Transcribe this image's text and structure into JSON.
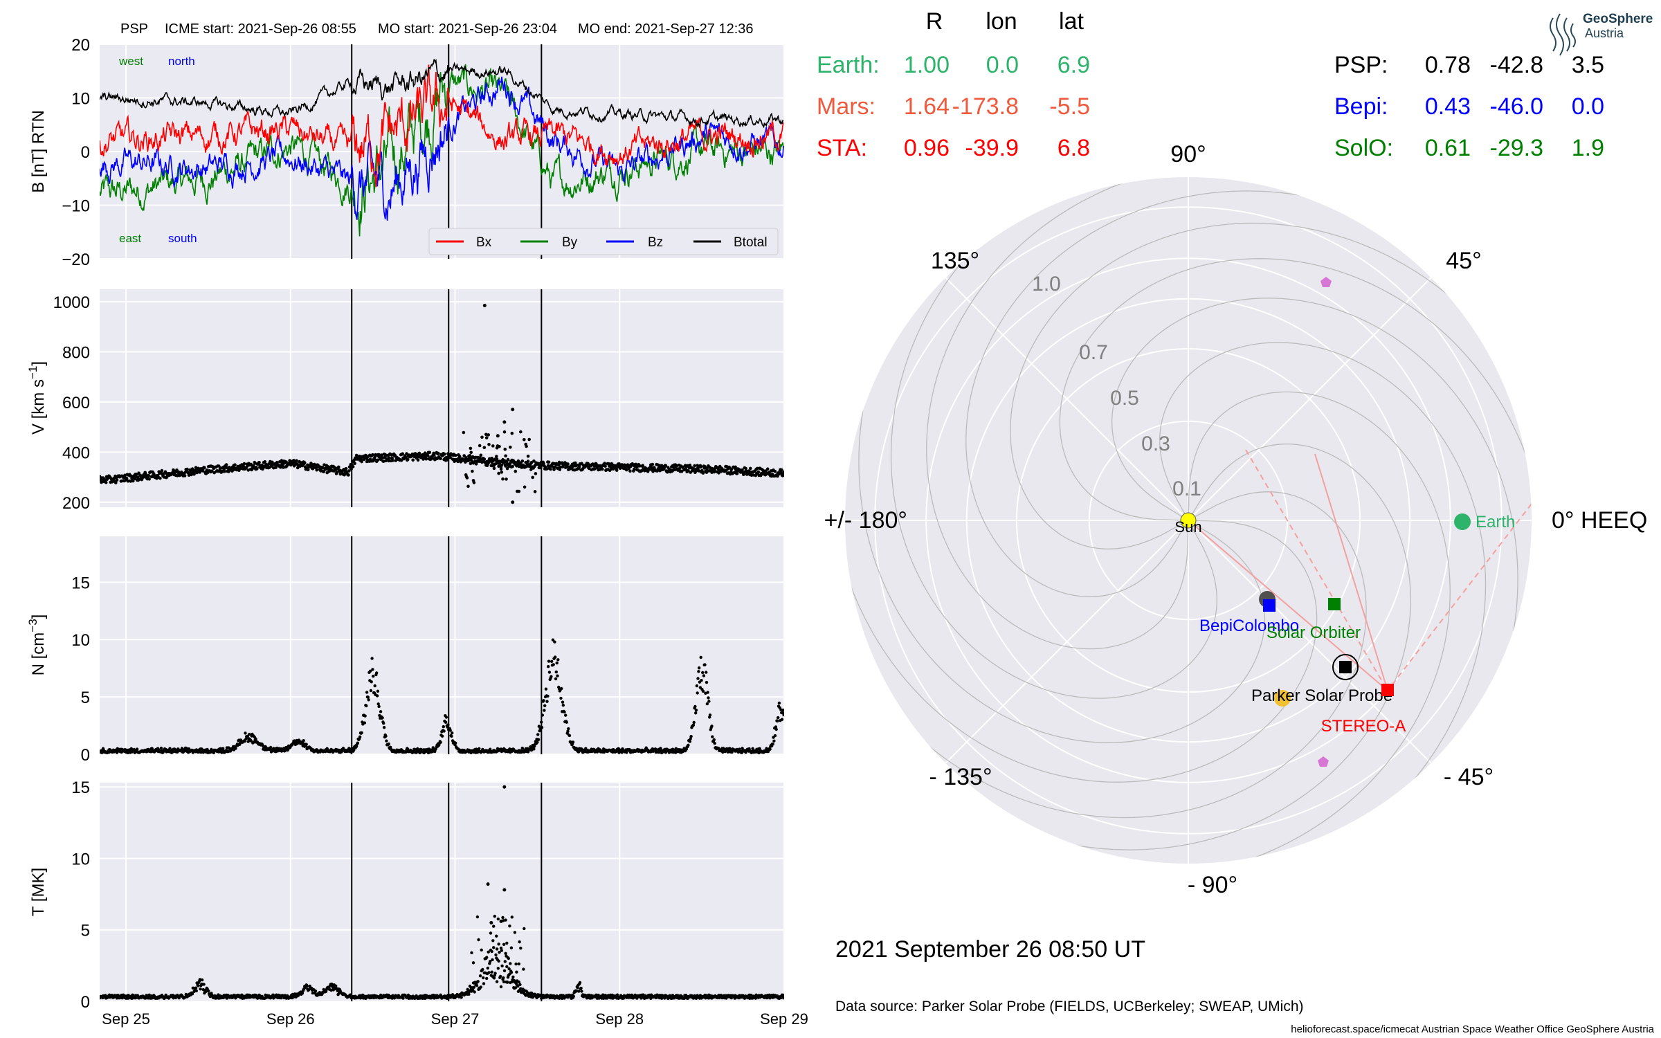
{
  "header": {
    "spacecraft": "PSP",
    "icme_start": "ICME start: 2021-Sep-26 08:55",
    "mo_start": "MO start: 2021-Sep-26 23:04",
    "mo_end": "MO end: 2021-Sep-27 12:36"
  },
  "logo": {
    "line1": "GeoSphere",
    "line2": "Austria"
  },
  "colors": {
    "earth": "#2db36a",
    "mars": "#f05a3c",
    "sta": "#ff0000",
    "bepi": "#0000ff",
    "solo": "#008000",
    "psp": "#000000",
    "bx": "#ff0000",
    "by": "#008000",
    "bz": "#0000ff",
    "btotal": "#000000",
    "panel_bg": "#eaeaf2",
    "polar_bg": "#e8e8ee",
    "venus_marker": "#d876d6"
  },
  "position_table": {
    "headers": [
      "R",
      "lon",
      "lat"
    ],
    "rows_left": [
      {
        "name": "Earth:",
        "r": "1.00",
        "lon": "0.0",
        "lat": "6.9",
        "color": "#2db36a"
      },
      {
        "name": "Mars:",
        "r": "1.64",
        "lon": "-173.8",
        "lat": "-5.5",
        "color": "#f05a3c"
      },
      {
        "name": "STA:",
        "r": "0.96",
        "lon": "-39.9",
        "lat": "6.8",
        "color": "#ff0000"
      }
    ],
    "rows_right": [
      {
        "name": "PSP:",
        "r": "0.78",
        "lon": "-42.8",
        "lat": "3.5",
        "color": "#000000"
      },
      {
        "name": "Bepi:",
        "r": "0.43",
        "lon": "-46.0",
        "lat": "0.0",
        "color": "#0000ff"
      },
      {
        "name": "SolO:",
        "r": "0.61",
        "lon": "-29.3",
        "lat": "1.9",
        "color": "#008000"
      }
    ]
  },
  "polar": {
    "angle_labels": [
      "90°",
      "45°",
      "0° HEEQ",
      "- 45°",
      "- 90°",
      "- 135°",
      "+/- 180°",
      "135°"
    ],
    "r_ticks": [
      "1.0",
      "0.7",
      "0.5",
      "0.3",
      "0.1"
    ],
    "body_labels": {
      "sun": "Sun",
      "earth": "Earth",
      "bepi": "BepiColombo",
      "solo": "Solar Orbiter",
      "psp": "Parker Solar Probe",
      "sta": "STEREO-A"
    },
    "date": "2021 September 26  08:50 UT"
  },
  "footer": {
    "data_source": "Data source: Parker Solar Probe (FIELDS, UCBerkeley; SWEAP, UMich)",
    "credit": "helioforecast.space/icmecat   Austrian Space Weather Office   GeoSphere Austria"
  },
  "chart_data": [
    {
      "type": "line",
      "title": "",
      "ylabel": "B [nT] RTN",
      "ylim": [
        -20,
        20
      ],
      "yticks": [
        "20",
        "10",
        "0",
        "−10",
        "−20"
      ],
      "xticks": [
        "Sep 25",
        "Sep 26",
        "Sep 27",
        "Sep 28",
        "Sep 29"
      ],
      "annotations": [
        "west",
        "north",
        "east",
        "south"
      ],
      "event_lines": [
        "2021-09-26 08:55",
        "2021-09-26 23:04",
        "2021-09-27 12:36"
      ],
      "legend": {
        "placement": "lower-right",
        "entries": [
          "Bx",
          "By",
          "Bz",
          "Btotal"
        ]
      },
      "series": [
        {
          "name": "Bx",
          "x": [
            "Sep 24.9",
            "Sep 25.5",
            "Sep 26.0",
            "Sep 26.37",
            "Sep 26.6",
            "Sep 26.96",
            "Sep 27.3",
            "Sep 27.6",
            "Sep 28.0",
            "Sep 28.5",
            "Sep 29.0"
          ],
          "values": [
            2,
            3,
            4,
            0,
            3,
            9,
            2,
            3,
            0,
            3,
            3
          ]
        },
        {
          "name": "By",
          "x": [
            "Sep 24.9",
            "Sep 25.5",
            "Sep 26.0",
            "Sep 26.37",
            "Sep 26.6",
            "Sep 26.96",
            "Sep 27.3",
            "Sep 27.6",
            "Sep 28.0",
            "Sep 28.5",
            "Sep 29.0"
          ],
          "values": [
            -8,
            -5,
            1,
            -6,
            -3,
            13,
            10,
            -6,
            -3,
            0,
            0
          ]
        },
        {
          "name": "Bz",
          "x": [
            "Sep 24.9",
            "Sep 25.5",
            "Sep 26.0",
            "Sep 26.37",
            "Sep 26.6",
            "Sep 26.96",
            "Sep 27.3",
            "Sep 27.6",
            "Sep 28.0",
            "Sep 28.5",
            "Sep 29.0"
          ],
          "values": [
            -2,
            -3,
            -1,
            -6,
            -7,
            5,
            13,
            2,
            -4,
            3,
            1
          ]
        },
        {
          "name": "Btotal",
          "x": [
            "Sep 24.9",
            "Sep 25.5",
            "Sep 26.0",
            "Sep 26.37",
            "Sep 26.6",
            "Sep 26.96",
            "Sep 27.3",
            "Sep 27.6",
            "Sep 28.0",
            "Sep 28.5",
            "Sep 29.0"
          ],
          "values": [
            10,
            9,
            7,
            13,
            12,
            15,
            15,
            8,
            7,
            6,
            6
          ]
        }
      ]
    },
    {
      "type": "scatter",
      "ylabel": "V [km s",
      "ylabel_sup": "−1",
      "ylabel_end": "]",
      "ylim": [
        180,
        1050
      ],
      "yticks": [
        "1000",
        "800",
        "600",
        "400",
        "200"
      ],
      "xticks": [
        "Sep 25",
        "Sep 26",
        "Sep 27",
        "Sep 28",
        "Sep 29"
      ],
      "series": [
        {
          "name": "V",
          "x": [
            "Sep 24.9",
            "Sep 25.5",
            "Sep 26.0",
            "Sep 26.35",
            "Sep 26.4",
            "Sep 26.9",
            "Sep 27.2",
            "Sep 27.6",
            "Sep 28.0",
            "Sep 28.6",
            "Sep 29.0"
          ],
          "values": [
            290,
            330,
            355,
            320,
            375,
            385,
            360,
            345,
            340,
            330,
            315
          ]
        }
      ]
    },
    {
      "type": "scatter",
      "ylabel": "N [cm",
      "ylabel_sup": "−3",
      "ylabel_end": "]",
      "ylim": [
        0,
        19
      ],
      "yticks": [
        "15",
        "10",
        "5",
        "0"
      ],
      "xticks": [
        "Sep 25",
        "Sep 26",
        "Sep 27",
        "Sep 28",
        "Sep 29"
      ],
      "series": [
        {
          "name": "N",
          "x": [
            "Sep 25.8",
            "Sep 26.45",
            "Sep 26.95",
            "Sep 27.6",
            "Sep 28.45",
            "Sep 29.0"
          ],
          "values": [
            1.5,
            7.0,
            2.5,
            8.5,
            7.5,
            3.5
          ]
        }
      ]
    },
    {
      "type": "scatter",
      "ylabel": "T [MK]",
      "ylim": [
        0,
        15.3
      ],
      "yticks": [
        "15",
        "10",
        "5",
        "0"
      ],
      "xticks": [
        "Sep 25",
        "Sep 26",
        "Sep 27",
        "Sep 28",
        "Sep 29"
      ],
      "series": [
        {
          "name": "T",
          "x": [
            "Sep 25.4",
            "Sep 26.1",
            "Sep 26.3",
            "Sep 27.15",
            "Sep 27.25",
            "Sep 27.3",
            "Sep 27.75"
          ],
          "values": [
            1.5,
            1.5,
            1.0,
            8.2,
            5.5,
            15.0,
            1.0
          ]
        }
      ]
    }
  ]
}
